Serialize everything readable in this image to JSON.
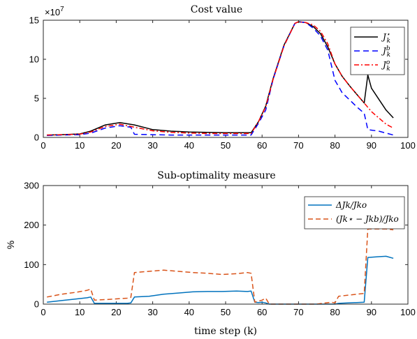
{
  "chart_data": [
    {
      "type": "line",
      "title": "Cost value",
      "xlabel": "",
      "ylabel": "",
      "y_exponent_label": "×10",
      "y_exponent_power": "7",
      "xlim": [
        0,
        100
      ],
      "ylim": [
        0,
        15
      ],
      "xticks": [
        "0",
        "10",
        "20",
        "30",
        "40",
        "50",
        "60",
        "70",
        "80",
        "90",
        "100"
      ],
      "yticks": [
        "0",
        "5",
        "10",
        "15"
      ],
      "legend_placement": "top-right",
      "series": [
        {
          "name": "J_k^*",
          "legend_main": "J",
          "legend_sub": "k",
          "legend_sup": "⋆",
          "color": "#000000",
          "dash": "",
          "x": [
            1,
            5,
            10,
            13,
            17,
            21,
            25,
            30,
            35,
            40,
            45,
            50,
            55,
            57,
            59,
            61,
            63,
            66,
            69,
            70,
            72,
            74,
            76,
            78,
            80,
            82,
            84,
            86,
            88,
            89,
            90,
            92,
            94,
            96
          ],
          "y": [
            0.3,
            0.35,
            0.45,
            0.8,
            1.6,
            1.9,
            1.6,
            1.0,
            0.8,
            0.7,
            0.65,
            0.6,
            0.6,
            0.6,
            2.0,
            4.0,
            7.5,
            11.8,
            14.6,
            14.8,
            14.7,
            14.2,
            13.3,
            11.6,
            9.4,
            7.8,
            6.6,
            5.5,
            4.4,
            8.0,
            6.3,
            4.9,
            3.5,
            2.5
          ]
        },
        {
          "name": "J_k^b",
          "legend_main": "J",
          "legend_sub": "k",
          "legend_sup": "b",
          "color": "#0000ff",
          "dash": "8,5",
          "x": [
            1,
            5,
            10,
            13,
            17,
            21,
            24,
            25,
            30,
            35,
            40,
            45,
            50,
            55,
            57,
            59,
            61,
            63,
            66,
            69,
            70,
            72,
            74,
            76,
            78,
            80,
            82,
            84,
            86,
            88,
            89,
            92,
            96
          ],
          "y": [
            0.25,
            0.3,
            0.35,
            0.55,
            1.2,
            1.5,
            1.3,
            0.4,
            0.35,
            0.3,
            0.3,
            0.3,
            0.3,
            0.3,
            0.3,
            1.8,
            3.5,
            7.4,
            11.7,
            14.6,
            14.8,
            14.7,
            14.0,
            13.0,
            11.2,
            7.3,
            5.7,
            4.8,
            3.9,
            3.1,
            1.0,
            0.8,
            0.3
          ]
        },
        {
          "name": "J_k^o",
          "legend_main": "J",
          "legend_sub": "k",
          "legend_sup": "o",
          "color": "#ff0000",
          "dash": "7,3,2,3",
          "x": [
            1,
            5,
            10,
            13,
            17,
            21,
            25,
            30,
            35,
            40,
            45,
            50,
            55,
            57,
            59,
            61,
            63,
            66,
            69,
            70,
            72,
            74,
            76,
            78,
            80,
            82,
            84,
            86,
            88,
            90,
            92,
            94,
            96
          ],
          "y": [
            0.3,
            0.35,
            0.42,
            0.7,
            1.4,
            1.7,
            1.3,
            0.85,
            0.65,
            0.55,
            0.5,
            0.5,
            0.5,
            0.5,
            2.0,
            3.9,
            7.4,
            11.7,
            14.6,
            14.8,
            14.7,
            14.4,
            13.6,
            12.0,
            9.4,
            7.8,
            6.6,
            5.5,
            4.4,
            3.3,
            2.5,
            1.7,
            1.2
          ]
        }
      ]
    },
    {
      "type": "line",
      "title": "Sub-optimality measure",
      "xlabel": "time step (k)",
      "ylabel": "%",
      "xlim": [
        0,
        100
      ],
      "ylim": [
        0,
        300
      ],
      "xticks": [
        "0",
        "10",
        "20",
        "30",
        "40",
        "50",
        "60",
        "70",
        "80",
        "90",
        "100"
      ],
      "yticks": [
        "0",
        "100",
        "200",
        "300"
      ],
      "legend_placement": "top-right",
      "series": [
        {
          "name": "ΔJ_k/J_k^o",
          "legend_text": "ΔJk/Jko",
          "color": "#0072bd",
          "dash": "",
          "x": [
            1,
            5,
            9,
            12,
            13,
            14,
            18,
            23,
            24,
            25,
            29,
            33,
            37,
            41,
            45,
            49,
            53,
            56,
            57,
            58,
            59,
            60,
            61,
            62,
            65,
            70,
            75,
            80,
            81,
            86,
            88,
            89,
            92,
            94,
            96
          ],
          "y": [
            5,
            9,
            13,
            16,
            18,
            2,
            2,
            2,
            3,
            18,
            20,
            25,
            28,
            31,
            32,
            32,
            33,
            32,
            33,
            5,
            4,
            5,
            3,
            0,
            0,
            0,
            0,
            0,
            2,
            4,
            5,
            118,
            120,
            121,
            116
          ]
        },
        {
          "name": "(J_k^* − J_k^b)/J_k^o",
          "legend_text": "(Jk⋆ − Jkb)/Jko",
          "color": "#d95319",
          "dash": "7,4",
          "x": [
            1,
            5,
            9,
            12,
            13,
            14,
            18,
            23,
            24,
            25,
            29,
            33,
            37,
            41,
            45,
            49,
            53,
            56,
            57,
            58,
            60,
            61,
            62,
            65,
            70,
            75,
            79,
            80,
            81,
            86,
            88,
            89,
            92,
            94,
            96
          ],
          "y": [
            18,
            25,
            30,
            35,
            38,
            10,
            12,
            15,
            17,
            80,
            83,
            86,
            83,
            80,
            78,
            75,
            77,
            80,
            78,
            5,
            10,
            15,
            0,
            0,
            0,
            0,
            5,
            3,
            20,
            25,
            27,
            190,
            190,
            190,
            188
          ]
        }
      ]
    }
  ]
}
